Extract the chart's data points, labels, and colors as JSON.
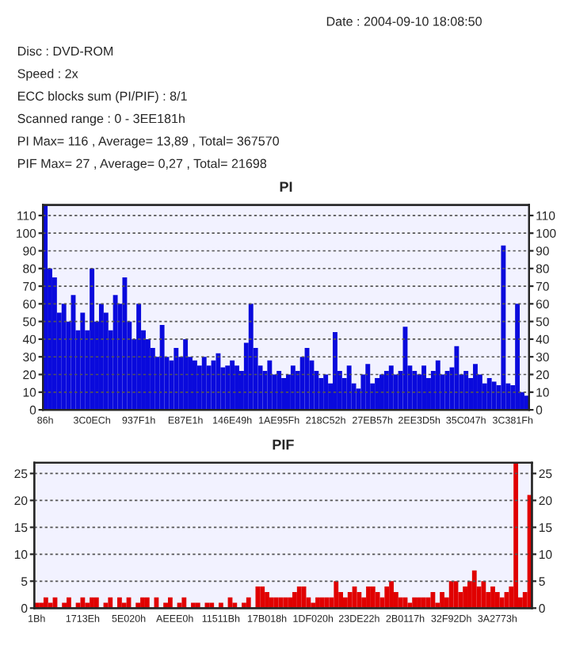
{
  "chart_data": [
    {
      "type": "bar",
      "title": "PI",
      "annotations": [
        "Date : 2004-09-10 18:08:50",
        "Disc : DVD-ROM",
        "Speed : 2x",
        "ECC blocks sum (PI/PIF) : 8/1",
        "Scanned range : 0 - 3EE181h",
        "PI Max= 116 , Average= 13,89 , Total= 367570",
        "PIF Max= 27 , Average= 0,27 , Total= 21698"
      ],
      "categories": [
        "86h",
        null,
        null,
        null,
        null,
        null,
        null,
        null,
        null,
        null,
        "3C0ECh",
        null,
        null,
        null,
        null,
        null,
        null,
        null,
        null,
        null,
        "937F1h",
        null,
        null,
        null,
        null,
        null,
        null,
        null,
        null,
        null,
        "E87E1h",
        null,
        null,
        null,
        null,
        null,
        null,
        null,
        null,
        null,
        "146E49h",
        null,
        null,
        null,
        null,
        null,
        null,
        null,
        null,
        null,
        "1AE95Fh",
        null,
        null,
        null,
        null,
        null,
        null,
        null,
        null,
        null,
        "218C52h",
        null,
        null,
        null,
        null,
        null,
        null,
        null,
        null,
        null,
        "27EB57h",
        null,
        null,
        null,
        null,
        null,
        null,
        null,
        null,
        null,
        "2EE3D5h",
        null,
        null,
        null,
        null,
        null,
        null,
        null,
        null,
        null,
        "35C047h",
        null,
        null,
        null,
        null,
        null,
        null,
        null,
        null,
        null,
        "3C381Fh",
        null,
        null,
        null
      ],
      "values": [
        116,
        80,
        75,
        55,
        60,
        50,
        65,
        45,
        55,
        45,
        80,
        50,
        60,
        55,
        45,
        65,
        60,
        75,
        50,
        40,
        60,
        45,
        40,
        35,
        30,
        48,
        30,
        28,
        35,
        30,
        40,
        30,
        28,
        25,
        30,
        25,
        28,
        32,
        24,
        25,
        28,
        25,
        22,
        38,
        60,
        35,
        25,
        22,
        28,
        20,
        22,
        18,
        20,
        25,
        22,
        30,
        35,
        28,
        22,
        18,
        20,
        15,
        44,
        22,
        18,
        25,
        15,
        12,
        20,
        26,
        15,
        18,
        20,
        22,
        25,
        20,
        22,
        47,
        25,
        22,
        20,
        25,
        18,
        22,
        28,
        20,
        22,
        24,
        36,
        20,
        22,
        18,
        26,
        20,
        15,
        18,
        16,
        14,
        93,
        15,
        14,
        60,
        10,
        8
      ],
      "color": "#0a0adc",
      "ylim": [
        0,
        116
      ],
      "yticks": [
        0,
        10,
        20,
        30,
        40,
        50,
        60,
        70,
        80,
        90,
        100,
        110
      ],
      "y2lim": [
        0,
        116
      ],
      "y2ticks": [
        0,
        10,
        20,
        30,
        40,
        50,
        60,
        70,
        80,
        90,
        100,
        110
      ],
      "grid": "y"
    },
    {
      "type": "bar",
      "title": "PIF",
      "categories": [
        "1Bh",
        null,
        null,
        null,
        null,
        null,
        null,
        null,
        null,
        null,
        "1713Eh",
        null,
        null,
        null,
        null,
        null,
        null,
        null,
        null,
        null,
        "5E020h",
        null,
        null,
        null,
        null,
        null,
        null,
        null,
        null,
        null,
        "AEEE0h",
        null,
        null,
        null,
        null,
        null,
        null,
        null,
        null,
        null,
        "11511Bh",
        null,
        null,
        null,
        null,
        null,
        null,
        null,
        null,
        null,
        "17B018h",
        null,
        null,
        null,
        null,
        null,
        null,
        null,
        null,
        null,
        "1DF020h",
        null,
        null,
        null,
        null,
        null,
        null,
        null,
        null,
        null,
        "23DE22h",
        null,
        null,
        null,
        null,
        null,
        null,
        null,
        null,
        null,
        "2B0117h",
        null,
        null,
        null,
        null,
        null,
        null,
        null,
        null,
        null,
        "32F92Dh",
        null,
        null,
        null,
        null,
        null,
        null,
        null,
        null,
        null,
        "3A2773h",
        null,
        null,
        null,
        null,
        null,
        null,
        null
      ],
      "values": [
        1,
        1,
        2,
        1,
        2,
        0,
        1,
        2,
        0,
        1,
        2,
        1,
        2,
        2,
        0,
        1,
        2,
        0,
        2,
        1,
        2,
        0,
        1,
        2,
        2,
        0,
        2,
        0,
        1,
        2,
        0,
        1,
        2,
        0,
        1,
        1,
        0,
        1,
        1,
        0,
        1,
        0,
        2,
        1,
        0,
        1,
        2,
        0,
        4,
        4,
        3,
        2,
        2,
        2,
        2,
        2,
        3,
        4,
        4,
        2,
        1,
        2,
        2,
        2,
        2,
        5,
        3,
        2,
        3,
        4,
        3,
        2,
        4,
        4,
        3,
        2,
        4,
        5,
        3,
        2,
        2,
        1,
        2,
        2,
        2,
        2,
        3,
        1,
        3,
        2,
        5,
        5,
        3,
        4,
        5,
        7,
        4,
        5,
        3,
        4,
        3,
        2,
        3,
        4,
        27,
        2,
        3,
        21
      ],
      "color": "#e00000",
      "ylim": [
        0,
        27
      ],
      "yticks": [
        0,
        5,
        10,
        15,
        20,
        25
      ],
      "y2lim": [
        0,
        27
      ],
      "y2ticks": [
        0,
        5,
        10,
        15,
        20,
        25
      ],
      "grid": "y"
    }
  ]
}
